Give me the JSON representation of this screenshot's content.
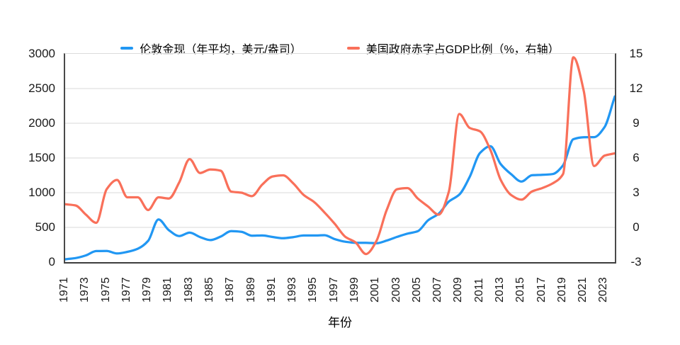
{
  "legend": [
    {
      "label": "伦敦金现（年平均，美元/盎司）",
      "color": "#2197f3"
    },
    {
      "label": "美国政府赤字占GDP比例（%，右轴）",
      "color": "#f9705a"
    }
  ],
  "chart_data": {
    "type": "line",
    "smooth": true,
    "grid": true,
    "legend_position": "top",
    "xlabel": "年份",
    "x": [
      1971,
      1972,
      1973,
      1974,
      1975,
      1976,
      1977,
      1978,
      1979,
      1980,
      1981,
      1982,
      1983,
      1984,
      1985,
      1986,
      1987,
      1988,
      1989,
      1990,
      1991,
      1992,
      1993,
      1994,
      1995,
      1996,
      1997,
      1998,
      1999,
      2000,
      2001,
      2002,
      2003,
      2004,
      2005,
      2006,
      2007,
      2008,
      2009,
      2010,
      2011,
      2012,
      2013,
      2014,
      2015,
      2016,
      2017,
      2018,
      2019,
      2020,
      2021,
      2022,
      2023,
      2024
    ],
    "x_tick_labels": [
      "1971",
      "1973",
      "1975",
      "1977",
      "1979",
      "1981",
      "1983",
      "1985",
      "1987",
      "1989",
      "1991",
      "1993",
      "1995",
      "1997",
      "1999",
      "2001",
      "2003",
      "2005",
      "2007",
      "2009",
      "2011",
      "2013",
      "2015",
      "2017",
      "2019",
      "2021",
      "2023"
    ],
    "left_axis": {
      "range": [
        0,
        3000
      ],
      "ticks": [
        0,
        500,
        1000,
        1500,
        2000,
        2500,
        3000
      ]
    },
    "right_axis": {
      "range": [
        -3,
        15
      ],
      "ticks": [
        -3,
        0,
        3,
        6,
        9,
        12,
        15
      ]
    },
    "series": [
      {
        "name": "伦敦金现（年平均，美元/盎司）",
        "axis": "left",
        "color": "#2197f3",
        "values": [
          41,
          58,
          97,
          159,
          161,
          125,
          148,
          193,
          306,
          615,
          460,
          376,
          424,
          361,
          317,
          368,
          447,
          437,
          381,
          384,
          362,
          344,
          360,
          384,
          384,
          388,
          331,
          294,
          279,
          279,
          271,
          310,
          363,
          410,
          445,
          603,
          695,
          872,
          972,
          1225,
          1572,
          1669,
          1411,
          1266,
          1160,
          1251,
          1257,
          1268,
          1393,
          1770,
          1799,
          1800,
          1943,
          2386
        ]
      },
      {
        "name": "美国政府赤字占GDP比例（%，右轴）",
        "axis": "right",
        "color": "#f9705a",
        "values": [
          2.0,
          1.9,
          1.1,
          0.4,
          3.3,
          4.1,
          2.6,
          2.6,
          1.5,
          2.6,
          2.5,
          3.9,
          5.9,
          4.7,
          5.0,
          4.9,
          3.1,
          3.0,
          2.7,
          3.7,
          4.4,
          4.5,
          3.8,
          2.8,
          2.2,
          1.3,
          0.3,
          -0.8,
          -1.3,
          -2.3,
          -1.2,
          1.5,
          3.3,
          3.4,
          2.5,
          1.8,
          1.1,
          3.1,
          9.8,
          8.6,
          8.3,
          6.7,
          4.1,
          2.8,
          2.4,
          3.1,
          3.4,
          3.8,
          4.6,
          14.7,
          11.8,
          5.3,
          6.2,
          6.4
        ]
      }
    ]
  }
}
